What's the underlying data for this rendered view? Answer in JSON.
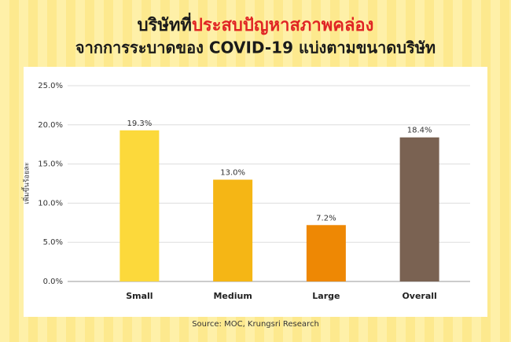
{
  "chart_data": {
    "type": "bar",
    "title_parts": [
      {
        "text": "บริษัทที่",
        "color": "#1a1a1a"
      },
      {
        "text": "ประสบปัญหาสภาพคล่อง",
        "color": "#e02424"
      }
    ],
    "subtitle": "จากการระบาดของ COVID-19 แบ่งตามขนาดบริษัท",
    "y_label": "เพิ่มขึ้นร้อยละ",
    "categories": [
      "Small",
      "Medium",
      "Large",
      "Overall"
    ],
    "values": [
      19.3,
      13.0,
      7.2,
      18.4
    ],
    "value_labels": [
      "19.3%",
      "13.0%",
      "7.2%",
      "18.4%"
    ],
    "colors": [
      "#fcd93b",
      "#f5b615",
      "#ee8804",
      "#7a6252"
    ],
    "ylim": [
      0,
      25
    ],
    "yticks": [
      {
        "value": 0,
        "label": "0.0%"
      },
      {
        "value": 5,
        "label": "5.0%"
      },
      {
        "value": 10,
        "label": "10.0%"
      },
      {
        "value": 15,
        "label": "15.0%"
      },
      {
        "value": 20,
        "label": "20.0%"
      },
      {
        "value": 25,
        "label": "25.0%"
      }
    ],
    "grid": true,
    "source": "Source: MOC, Krungsri Research"
  }
}
